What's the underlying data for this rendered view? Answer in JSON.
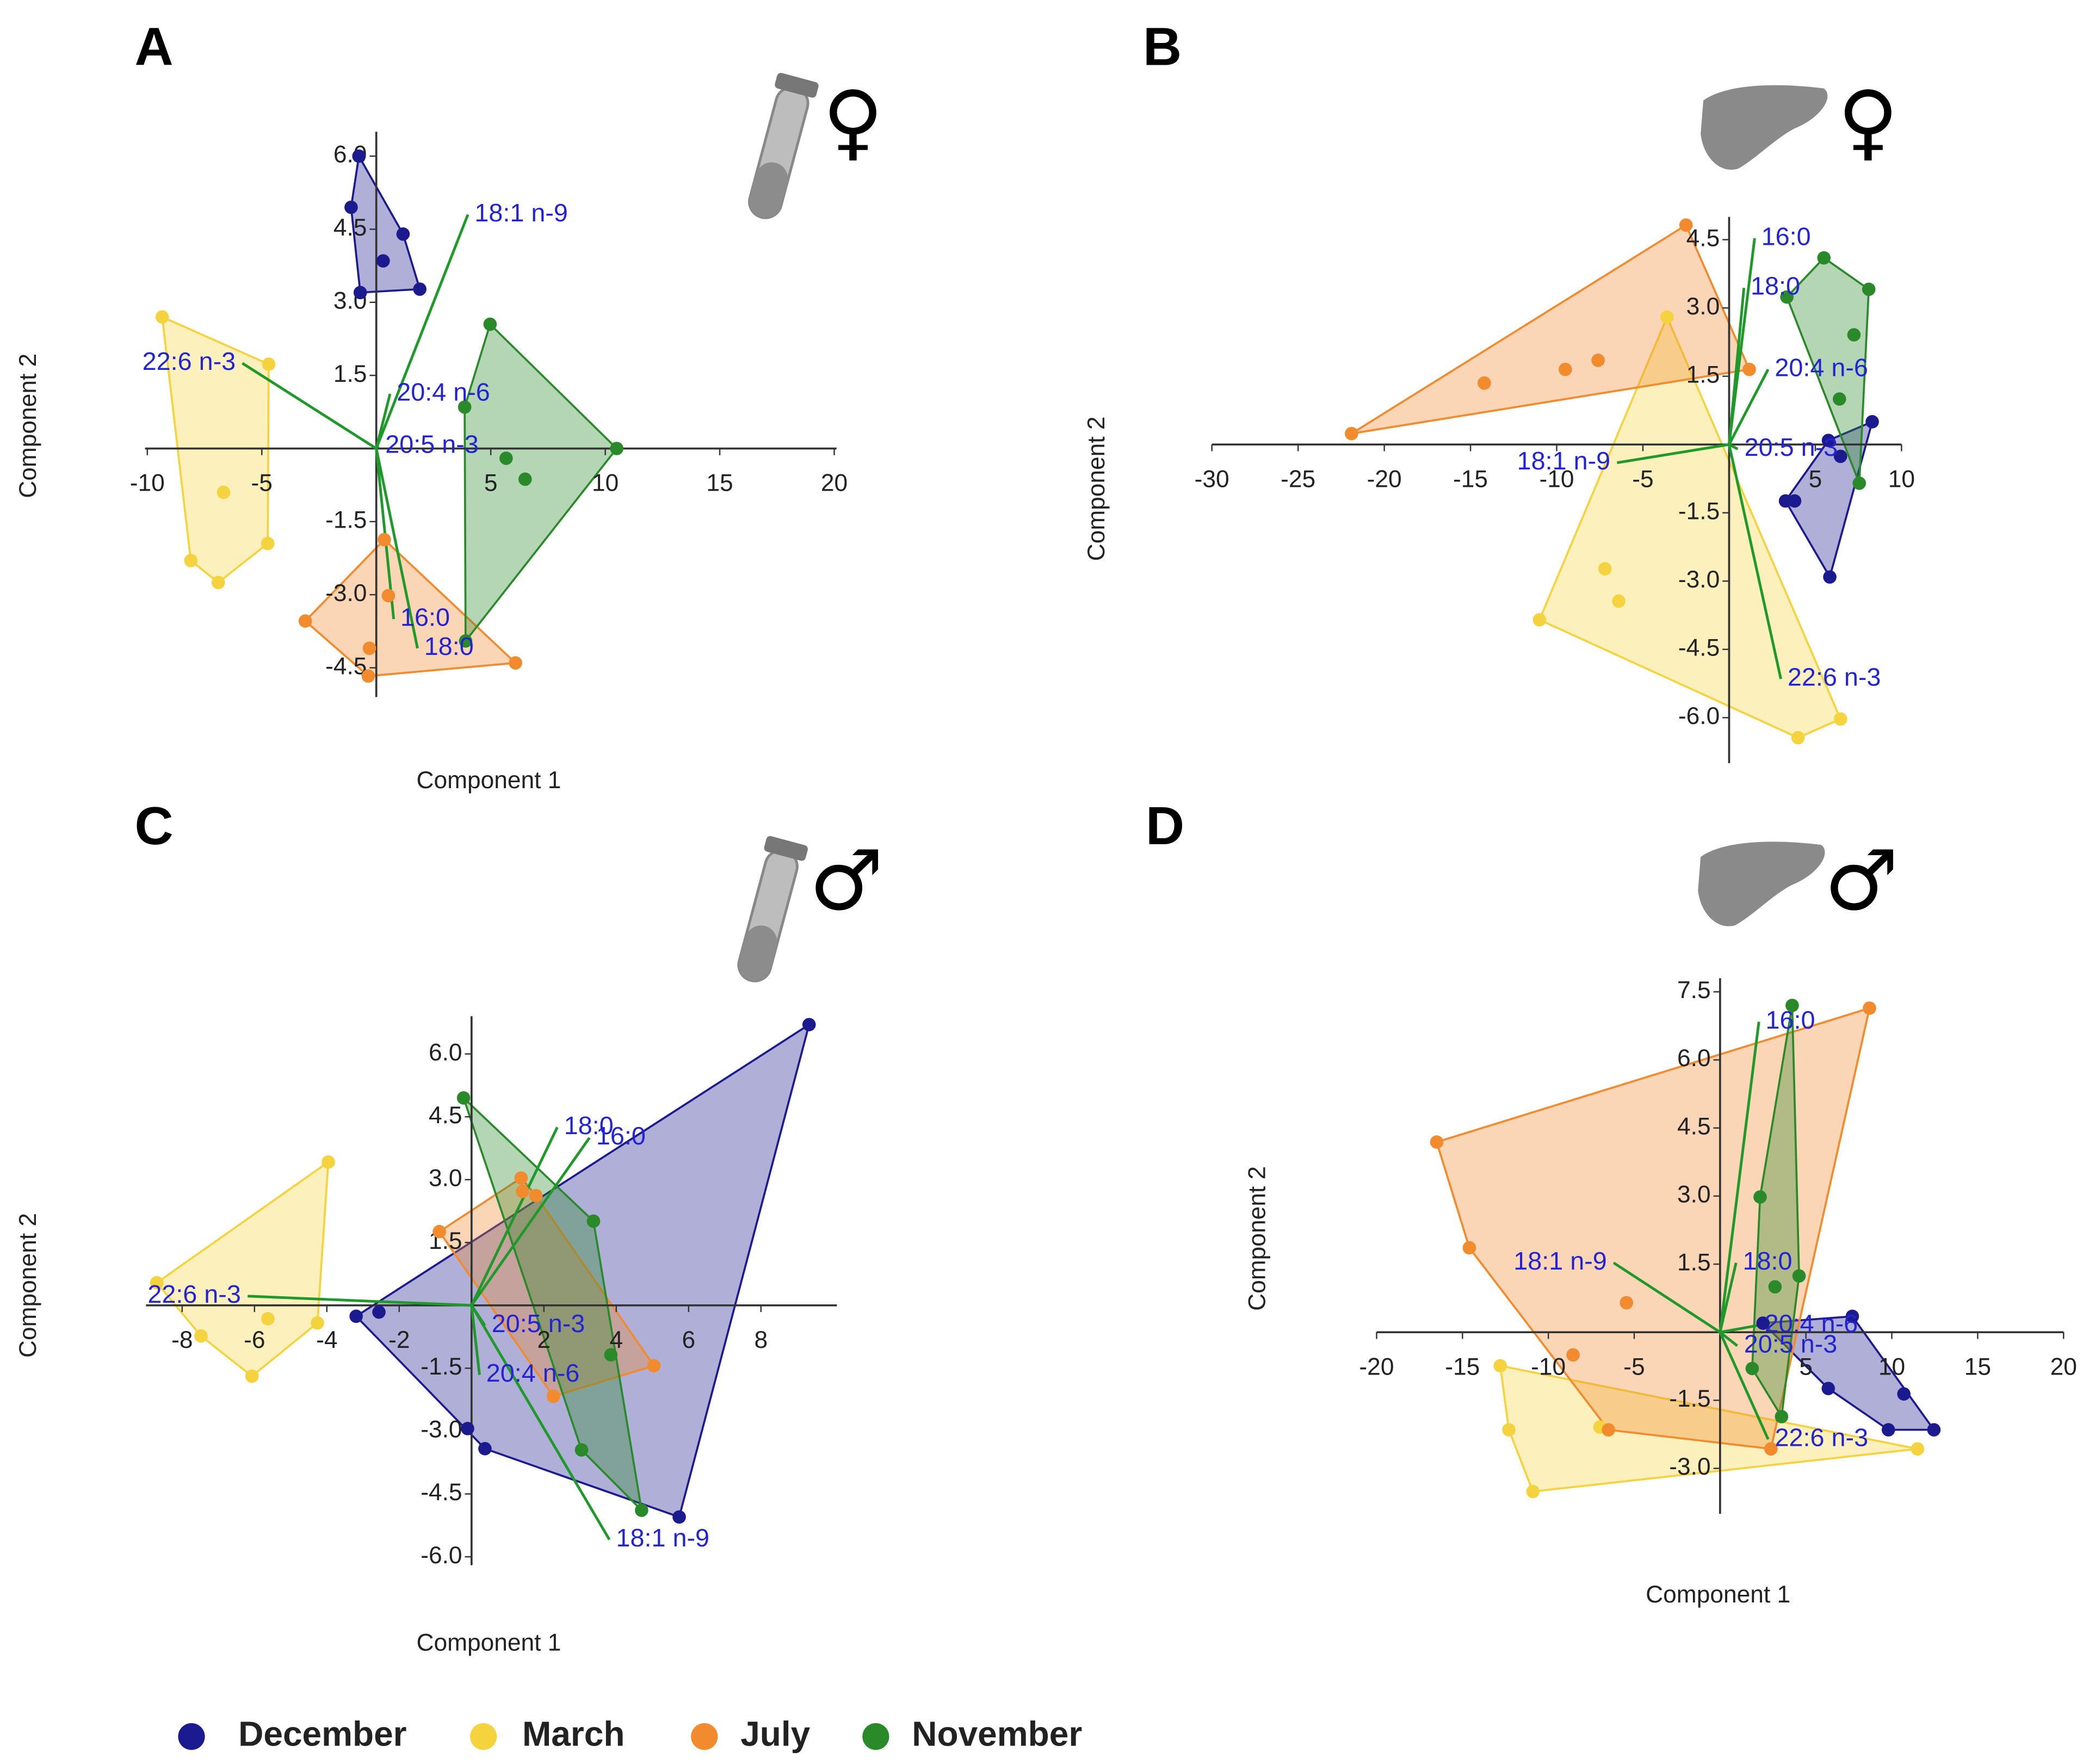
{
  "chart_data": [
    {
      "type": "scatter",
      "panel": "A",
      "symbol": "♀",
      "xlabel": "Component 1",
      "ylabel": "Component 2",
      "xlim": [
        -10.1,
        20.1
      ],
      "ylim": [
        -5.1,
        6.5
      ],
      "xticks": [
        -10,
        -5,
        5,
        10,
        15,
        20
      ],
      "yticks": [
        {
          "value": 6,
          "label": "6.0"
        },
        4.5,
        {
          "value": 3,
          "label": "3.0"
        },
        1.5,
        -1.5,
        {
          "value": -3,
          "label": "-3.0"
        },
        -4.5
      ],
      "loading_color": "#1f9a2a",
      "loading_label_color": "#2323d6",
      "series": [
        {
          "name": "December",
          "color": "#1b1b8f",
          "x": [
            -0.76,
            -1.1,
            1.17,
            0.3,
            1.9,
            -0.7
          ],
          "y": [
            6.0,
            4.95,
            4.4,
            3.85,
            3.27,
            3.2
          ]
        },
        {
          "name": "March",
          "color": "#f5d33f",
          "x": [
            -9.35,
            -4.7,
            -6.67,
            -4.74,
            -8.1,
            -6.9
          ],
          "y": [
            2.7,
            1.73,
            -0.9,
            -1.95,
            -2.3,
            -2.75
          ]
        },
        {
          "name": "July",
          "color": "#f28a2e",
          "x": [
            0.35,
            0.53,
            -3.1,
            -0.3,
            -0.35,
            6.08
          ],
          "y": [
            -1.87,
            -3.02,
            -3.54,
            -4.1,
            -4.67,
            -4.4
          ]
        },
        {
          "name": "November",
          "color": "#2a8a2a",
          "x": [
            4.97,
            3.86,
            10.5,
            5.67,
            6.5,
            3.9
          ],
          "y": [
            2.55,
            0.85,
            0,
            -0.2,
            -0.63,
            -3.95
          ]
        }
      ],
      "loadings": [
        {
          "label": "18:1 n-9",
          "x": 4.0,
          "y": 4.8
        },
        {
          "label": "22:6 n-3",
          "x": -5.85,
          "y": 1.75
        },
        {
          "label": "20:4 n-6",
          "x": 0.6,
          "y": 1.12
        },
        {
          "label": "20:5 n-3",
          "x": 0.1,
          "y": 0.05
        },
        {
          "label": "16:0",
          "x": 0.76,
          "y": -3.5
        },
        {
          "label": "18:0",
          "x": 1.8,
          "y": -4.1
        }
      ]
    },
    {
      "type": "scatter",
      "panel": "B",
      "symbol": "♀",
      "ylabel": "Component 2",
      "xlim": [
        -30,
        10
      ],
      "ylim": [
        -7,
        5
      ],
      "xticks": [
        -30,
        -25,
        -20,
        -15,
        -10,
        -5,
        5,
        10
      ],
      "yticks": [
        4.5,
        {
          "value": 3,
          "label": "3.0"
        },
        1.5,
        -1.5,
        {
          "value": -3,
          "label": "-3.0"
        },
        -4.5,
        {
          "value": -6,
          "label": "-6.0"
        }
      ],
      "loading_color": "#1f9a2a",
      "loading_label_color": "#2323d6",
      "series": [
        {
          "name": "December",
          "color": "#1b1b8f",
          "x": [
            8.3,
            5.76,
            6.46,
            3.27,
            3.8,
            5.84
          ],
          "y": [
            0.5,
            0.09,
            -0.26,
            -1.24,
            -1.24,
            -2.91
          ]
        },
        {
          "name": "March",
          "color": "#f5d33f",
          "x": [
            -3.6,
            -11,
            -7.2,
            -6.4,
            4.0,
            6.46
          ],
          "y": [
            2.8,
            -3.85,
            -2.73,
            -3.44,
            -6.44,
            -6.03
          ]
        },
        {
          "name": "July",
          "color": "#f28a2e",
          "x": [
            -2.5,
            -21.9,
            -14.2,
            -9.5,
            -7.6,
            1.17
          ],
          "y": [
            4.82,
            0.24,
            1.35,
            1.65,
            1.85,
            1.65
          ]
        },
        {
          "name": "November",
          "color": "#2a8a2a",
          "x": [
            5.5,
            8.1,
            3.35,
            7.24,
            6.4,
            7.55
          ],
          "y": [
            4.1,
            3.41,
            3.24,
            2.41,
            1.0,
            -0.85
          ]
        }
      ],
      "loadings": [
        {
          "label": "16:0",
          "x": 1.48,
          "y": 4.53
        },
        {
          "label": "18:0",
          "x": 0.86,
          "y": 3.44
        },
        {
          "label": "20:4 n-6",
          "x": 2.26,
          "y": 1.65
        },
        {
          "label": "20:5 n-3",
          "x": 0.5,
          "y": -0.1
        },
        {
          "label": "18:1 n-9",
          "x": -6.5,
          "y": -0.4
        },
        {
          "label": "22:6 n-3",
          "x": 3.0,
          "y": -5.15
        }
      ]
    },
    {
      "type": "scatter",
      "panel": "C",
      "symbol": "♂",
      "xlabel": "Component 1",
      "ylabel": "Component 2",
      "xlim": [
        -9,
        10.1
      ],
      "ylim": [
        -6.2,
        6.9
      ],
      "xticks": [
        -8,
        -6,
        -4,
        -2,
        2,
        4,
        6,
        8
      ],
      "yticks": [
        {
          "value": 6,
          "label": "6.0"
        },
        4.5,
        {
          "value": 3,
          "label": "3.0"
        },
        1.5,
        -1.5,
        {
          "value": -3,
          "label": "-3.0"
        },
        -4.5,
        {
          "value": -6,
          "label": "-6.0"
        }
      ],
      "loading_color": "#1f9a2a",
      "loading_label_color": "#2323d6",
      "series": [
        {
          "name": "December",
          "color": "#1b1b8f",
          "x": [
            9.33,
            -3.19,
            -2.56,
            -0.11,
            0.37,
            5.74
          ],
          "y": [
            6.7,
            -0.26,
            -0.16,
            -2.94,
            -3.42,
            -5.05
          ]
        },
        {
          "name": "March",
          "color": "#f5d33f",
          "x": [
            -3.96,
            -8.7,
            -7.48,
            -5.63,
            -4.26,
            -6.07
          ],
          "y": [
            3.42,
            0.54,
            -0.73,
            -0.32,
            -0.42,
            -1.69
          ]
        },
        {
          "name": "July",
          "color": "#f28a2e",
          "x": [
            -0.89,
            1.37,
            1.41,
            1.78,
            5.04,
            2.26
          ],
          "y": [
            1.76,
            3.04,
            2.72,
            2.62,
            -1.44,
            -2.17
          ]
        },
        {
          "name": "November",
          "color": "#2a8a2a",
          "x": [
            -0.22,
            3.37,
            3.85,
            3.04,
            4.7
          ],
          "y": [
            4.95,
            2.01,
            -1.18,
            -3.45,
            -4.89
          ]
        }
      ],
      "loadings": [
        {
          "label": "18:0",
          "x": 2.37,
          "y": 4.25
        },
        {
          "label": "16:0",
          "x": 3.26,
          "y": 4.0
        },
        {
          "label": "22:6 n-3",
          "x": -6.19,
          "y": 0.22
        },
        {
          "label": "20:5 n-3",
          "x": 0.37,
          "y": -0.48
        },
        {
          "label": "20:4 n-6",
          "x": 0.22,
          "y": -1.66
        },
        {
          "label": "18:1 n-9",
          "x": 3.81,
          "y": -5.59
        }
      ]
    },
    {
      "type": "scatter",
      "panel": "D",
      "symbol": "♂",
      "xlabel": "Component 1",
      "ylabel": "Component 2",
      "xlim": [
        -20,
        20
      ],
      "ylim": [
        -4,
        7.8
      ],
      "xticks": [
        -20,
        -15,
        -10,
        -5,
        5,
        10,
        15,
        20
      ],
      "yticks": [
        7.5,
        {
          "value": 6,
          "label": "6.0"
        },
        4.5,
        {
          "value": 3,
          "label": "3.0"
        },
        1.5,
        -1.5,
        {
          "value": -3,
          "label": "-3.0"
        }
      ],
      "loading_color": "#1f9a2a",
      "loading_label_color": "#2323d6",
      "series": [
        {
          "name": "December",
          "color": "#1b1b8f",
          "x": [
            7.7,
            6.3,
            10.7,
            12.45,
            9.8,
            2.5
          ],
          "y": [
            0.35,
            -1.24,
            -1.36,
            -2.15,
            -2.15,
            0.2
          ]
        },
        {
          "name": "March",
          "color": "#f5d33f",
          "x": [
            -12.8,
            -12.3,
            -10.9,
            -7.0,
            11.5
          ],
          "y": [
            -0.74,
            -2.15,
            -3.51,
            -2.09,
            -2.57
          ]
        },
        {
          "name": "July",
          "color": "#f28a2e",
          "x": [
            8.7,
            -16.5,
            -14.6,
            -5.45,
            -8.56,
            -6.5,
            2.96
          ],
          "y": [
            7.14,
            4.19,
            1.86,
            0.65,
            -0.5,
            -2.15,
            -2.57
          ]
        },
        {
          "name": "November",
          "color": "#2a8a2a",
          "x": [
            4.2,
            2.33,
            4.6,
            3.2,
            1.87,
            3.58
          ],
          "y": [
            7.2,
            2.98,
            1.24,
            1.0,
            -0.8,
            -1.86
          ]
        }
      ],
      "loadings": [
        {
          "label": "16:0",
          "x": 2.26,
          "y": 6.84
        },
        {
          "label": "18:1 n-9",
          "x": -6.2,
          "y": 1.53
        },
        {
          "label": "18:0",
          "x": 0.93,
          "y": 1.53
        },
        {
          "label": "20:4 n-6",
          "x": 2.2,
          "y": 0.15
        },
        {
          "label": "20:5 n-3",
          "x": 1.0,
          "y": -0.3
        },
        {
          "label": "22:6 n-3",
          "x": 2.8,
          "y": -2.36
        }
      ]
    }
  ]
}
